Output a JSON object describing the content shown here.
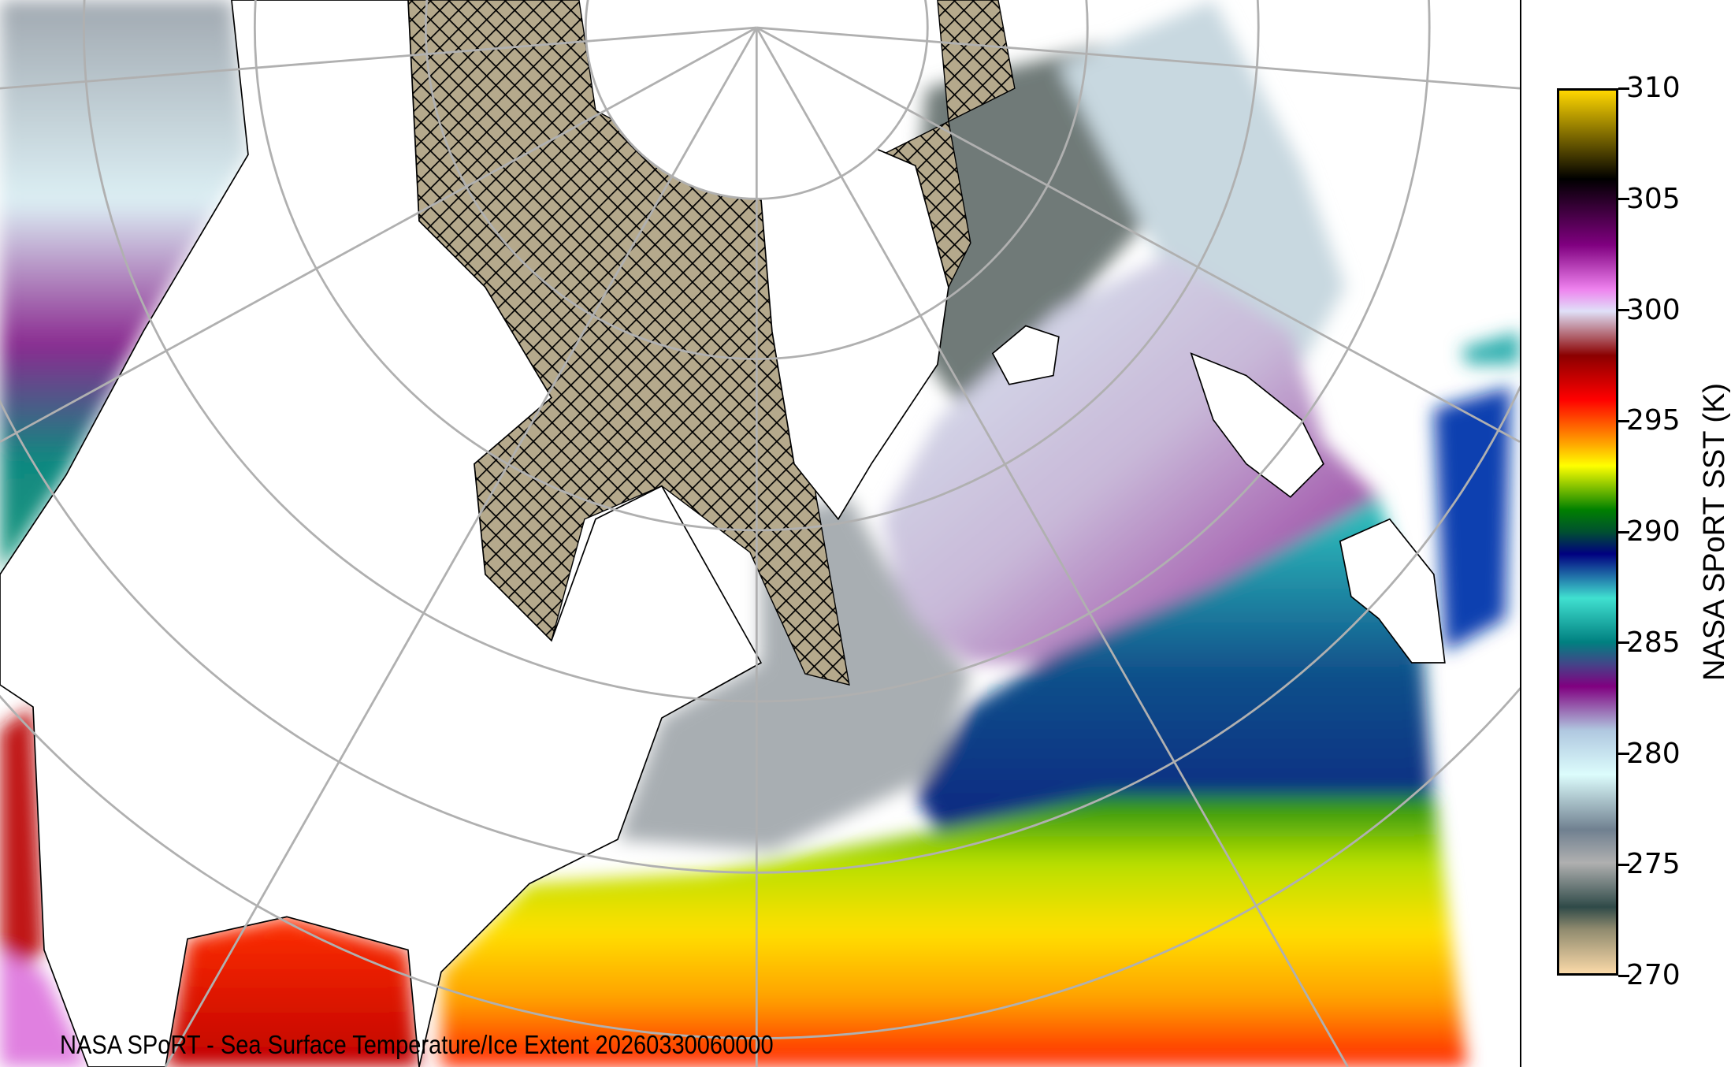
{
  "title": "NASA SPoRT - Sea Surface Temperature/Ice Extent 20260330060000",
  "colorbar": {
    "label": "NASA SPoRT SST (K)",
    "min": 270,
    "max": 310,
    "ticks": [
      "310",
      "305",
      "300",
      "295",
      "290",
      "285",
      "280",
      "275",
      "270"
    ],
    "stops": [
      {
        "value": 270,
        "color": "#fad9a8"
      },
      {
        "value": 272,
        "color": "#8f8a6e"
      },
      {
        "value": 273,
        "color": "#2f4a48"
      },
      {
        "value": 275,
        "color": "#b0b0b0"
      },
      {
        "value": 276.5,
        "color": "#708090"
      },
      {
        "value": 279,
        "color": "#dcfcfc"
      },
      {
        "value": 281,
        "color": "#b0c8e0"
      },
      {
        "value": 283,
        "color": "#800080"
      },
      {
        "value": 284,
        "color": "#444488"
      },
      {
        "value": 285,
        "color": "#008080"
      },
      {
        "value": 287,
        "color": "#40e0d0"
      },
      {
        "value": 289,
        "color": "#000080"
      },
      {
        "value": 290,
        "color": "#005030"
      },
      {
        "value": 291,
        "color": "#008000"
      },
      {
        "value": 293,
        "color": "#ffff00"
      },
      {
        "value": 294,
        "color": "#ffa500"
      },
      {
        "value": 296,
        "color": "#ff0000"
      },
      {
        "value": 298,
        "color": "#8b0000"
      },
      {
        "value": 300,
        "color": "#e0e0f8"
      },
      {
        "value": 301,
        "color": "#ee82ee"
      },
      {
        "value": 303,
        "color": "#800080"
      },
      {
        "value": 306,
        "color": "#000000"
      },
      {
        "value": 310,
        "color": "#ffd700"
      }
    ]
  },
  "colors": {
    "land": "#ffffff",
    "ice": "#b5a98c",
    "ice_hatch": "#000000",
    "graticule": "#b0b0b0",
    "coast": "#000000"
  }
}
